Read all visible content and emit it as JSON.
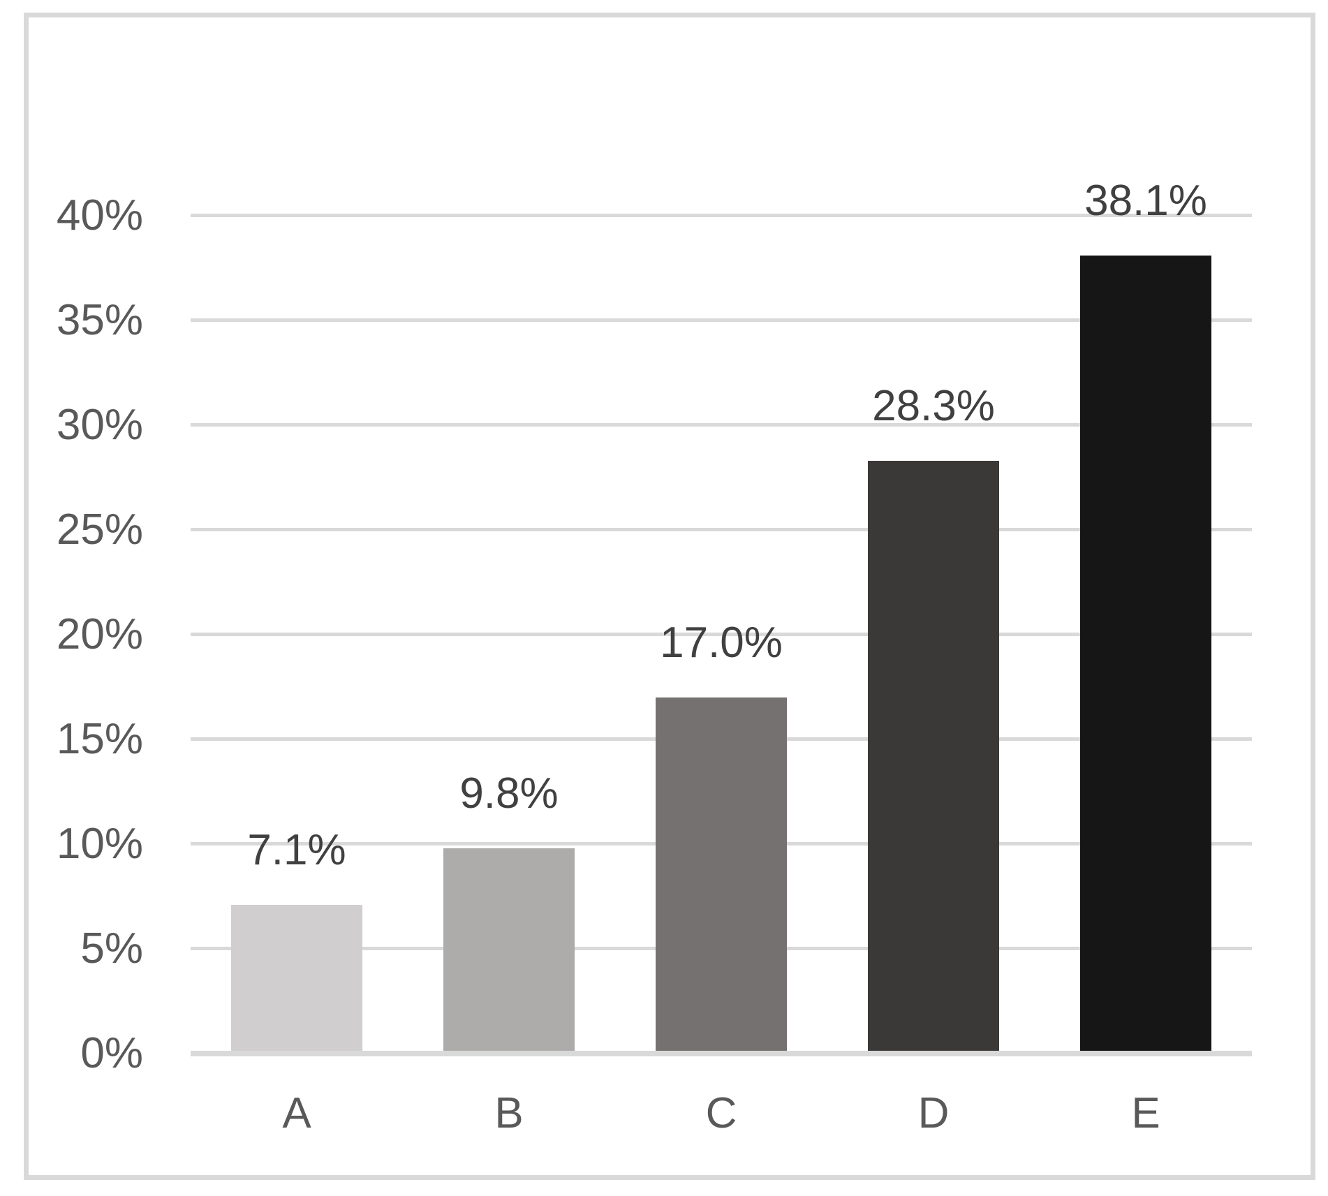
{
  "chart_data": {
    "type": "bar",
    "title": "",
    "categories": [
      "A",
      "B",
      "C",
      "D",
      "E"
    ],
    "values": [
      7.1,
      9.8,
      17.0,
      28.3,
      38.1
    ],
    "value_labels": [
      "7.1%",
      "9.8%",
      "17.0%",
      "28.3%",
      "38.1%"
    ],
    "bar_colors": [
      "#d0cece",
      "#aeabab",
      "#757171",
      "#3b3838",
      "#171616"
    ],
    "xlabel": "",
    "ylabel": "",
    "ylim": [
      0,
      40
    ],
    "y_tick_step": 5,
    "y_tick_labels": [
      "0%",
      "5%",
      "10%",
      "15%",
      "20%",
      "25%",
      "30%",
      "35%",
      "40%"
    ],
    "grid": "horizontal",
    "legend": "none",
    "data_labels_shown": true
  },
  "colors": {
    "background": "#ffffff",
    "frame_border": "#d9d9d9",
    "gridline": "#d9d9d9",
    "baseline": "#d9d9d9",
    "axis_label_color": "#595959",
    "data_label_color": "#404040"
  }
}
